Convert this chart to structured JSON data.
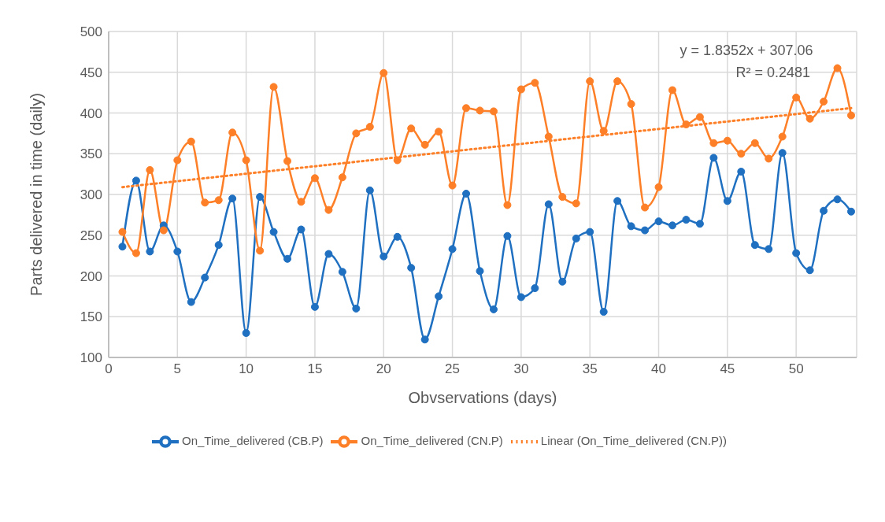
{
  "chart_data": {
    "type": "line",
    "xlabel": "Obvservations (days)",
    "ylabel": "Parts delivered in time (daily)",
    "x": [
      1,
      2,
      3,
      4,
      5,
      6,
      7,
      8,
      9,
      10,
      11,
      12,
      13,
      14,
      15,
      16,
      17,
      18,
      19,
      20,
      21,
      22,
      23,
      24,
      25,
      26,
      27,
      28,
      29,
      30,
      31,
      32,
      33,
      34,
      35,
      36,
      37,
      38,
      39,
      40,
      41,
      42,
      43,
      44,
      45,
      46,
      47,
      48,
      49,
      50,
      51,
      52,
      53,
      54
    ],
    "series": [
      {
        "name": "On_Time_delivered (CB.P)",
        "color": "#1f70c1",
        "marker": "circle",
        "line_style": "solid",
        "values": [
          236,
          317,
          230,
          262,
          230,
          168,
          198,
          238,
          295,
          130,
          297,
          254,
          221,
          257,
          162,
          227,
          205,
          160,
          305,
          224,
          248,
          210,
          122,
          175,
          233,
          301,
          206,
          159,
          249,
          174,
          185,
          288,
          193,
          246,
          254,
          156,
          292,
          261,
          256,
          267,
          262,
          269,
          264,
          345,
          292,
          328,
          238,
          233,
          351,
          228,
          207,
          280,
          294,
          279
        ]
      },
      {
        "name": "On_Time_delivered (CN.P)",
        "color": "#fd7f27",
        "marker": "circle",
        "line_style": "solid",
        "values": [
          254,
          228,
          330,
          256,
          342,
          365,
          290,
          293,
          376,
          342,
          231,
          432,
          341,
          291,
          320,
          281,
          321,
          375,
          383,
          449,
          342,
          381,
          361,
          377,
          311,
          406,
          403,
          402,
          287,
          429,
          437,
          371,
          297,
          289,
          439,
          378,
          439,
          411,
          284,
          309,
          428,
          386,
          395,
          363,
          366,
          350,
          363,
          344,
          371,
          419,
          393,
          414,
          455,
          397
        ]
      },
      {
        "name": "Linear (On_Time_delivered (CN.P))",
        "color": "#fd7f27",
        "marker": "none",
        "line_style": "dotted",
        "x": [
          1,
          54
        ],
        "values": [
          309,
          406
        ]
      }
    ],
    "xlim": [
      0,
      54.4
    ],
    "xticks": [
      0,
      5,
      10,
      15,
      20,
      25,
      30,
      35,
      40,
      45,
      50
    ],
    "ylim": [
      100,
      500
    ],
    "yticks": [
      100,
      150,
      200,
      250,
      300,
      350,
      400,
      450,
      500
    ],
    "grid": true,
    "legend": "bottom",
    "annotations": [
      "y = 1.8352x + 307.06",
      "R² = 0.2481"
    ]
  }
}
